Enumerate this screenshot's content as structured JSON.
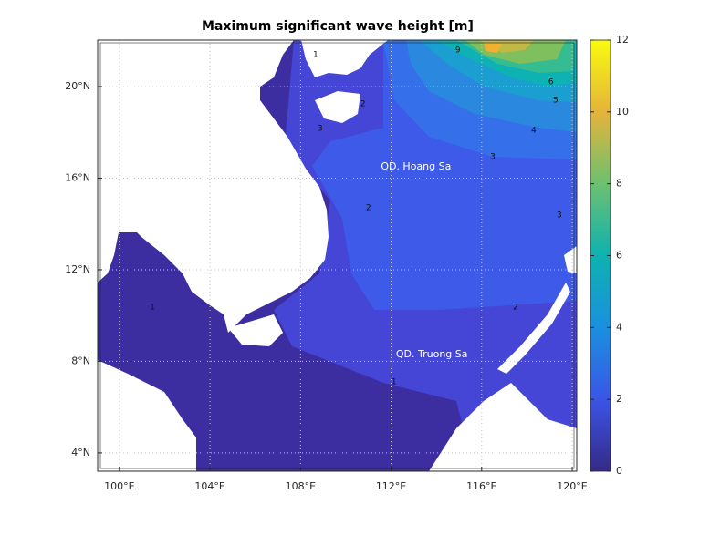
{
  "title": "Maximum significant wave height [m]",
  "map": {
    "lonlim": [
      99.04,
      120.2
    ],
    "latlim": [
      3.2,
      22.03
    ],
    "lon_ticks": [
      {
        "value": 100,
        "label": "100°E"
      },
      {
        "value": 104,
        "label": "104°E"
      },
      {
        "value": 108,
        "label": "108°E"
      },
      {
        "value": 112,
        "label": "112°E"
      },
      {
        "value": 116,
        "label": "116°E"
      },
      {
        "value": 120,
        "label": "120°E"
      }
    ],
    "lat_ticks": [
      {
        "value": 4,
        "label": "4°N"
      },
      {
        "value": 8,
        "label": "8°N"
      },
      {
        "value": 12,
        "label": "12°N"
      },
      {
        "value": 16,
        "label": "16°N"
      },
      {
        "value": 20,
        "label": "20°N"
      }
    ],
    "place_labels": [
      {
        "text": "QD. Hoang Sa",
        "lon": 113.1,
        "lat": 16.5
      },
      {
        "text": "QD. Truong Sa",
        "lon": 113.8,
        "lat": 8.3
      }
    ],
    "contour_labels": [
      {
        "value": 1,
        "lon": 108.67,
        "lat": 21.39
      },
      {
        "value": 1,
        "lon": 101.46,
        "lat": 10.37
      },
      {
        "value": 1,
        "lon": 112.13,
        "lat": 7.1
      },
      {
        "value": 2,
        "lon": 110.76,
        "lat": 19.24
      },
      {
        "value": 2,
        "lon": 117.5,
        "lat": 10.37
      },
      {
        "value": 2,
        "lon": 111.0,
        "lat": 14.7
      },
      {
        "value": 3,
        "lon": 116.49,
        "lat": 16.93
      },
      {
        "value": 3,
        "lon": 108.87,
        "lat": 18.17
      },
      {
        "value": 3,
        "lon": 119.43,
        "lat": 14.39
      },
      {
        "value": 4,
        "lon": 118.3,
        "lat": 18.09
      },
      {
        "value": 5,
        "lon": 119.27,
        "lat": 19.4
      },
      {
        "value": 6,
        "lon": 119.06,
        "lat": 20.2
      },
      {
        "value": 9,
        "lon": 114.95,
        "lat": 21.59
      }
    ]
  },
  "colorbar": {
    "lim": [
      0,
      12
    ],
    "ticks": [
      0,
      2,
      4,
      6,
      8,
      10,
      12
    ],
    "colormap": [
      "#352a87",
      "#3b55e6",
      "#1a90df",
      "#0db2b0",
      "#6dc070",
      "#e5b43a",
      "#f9fb0e"
    ]
  }
}
